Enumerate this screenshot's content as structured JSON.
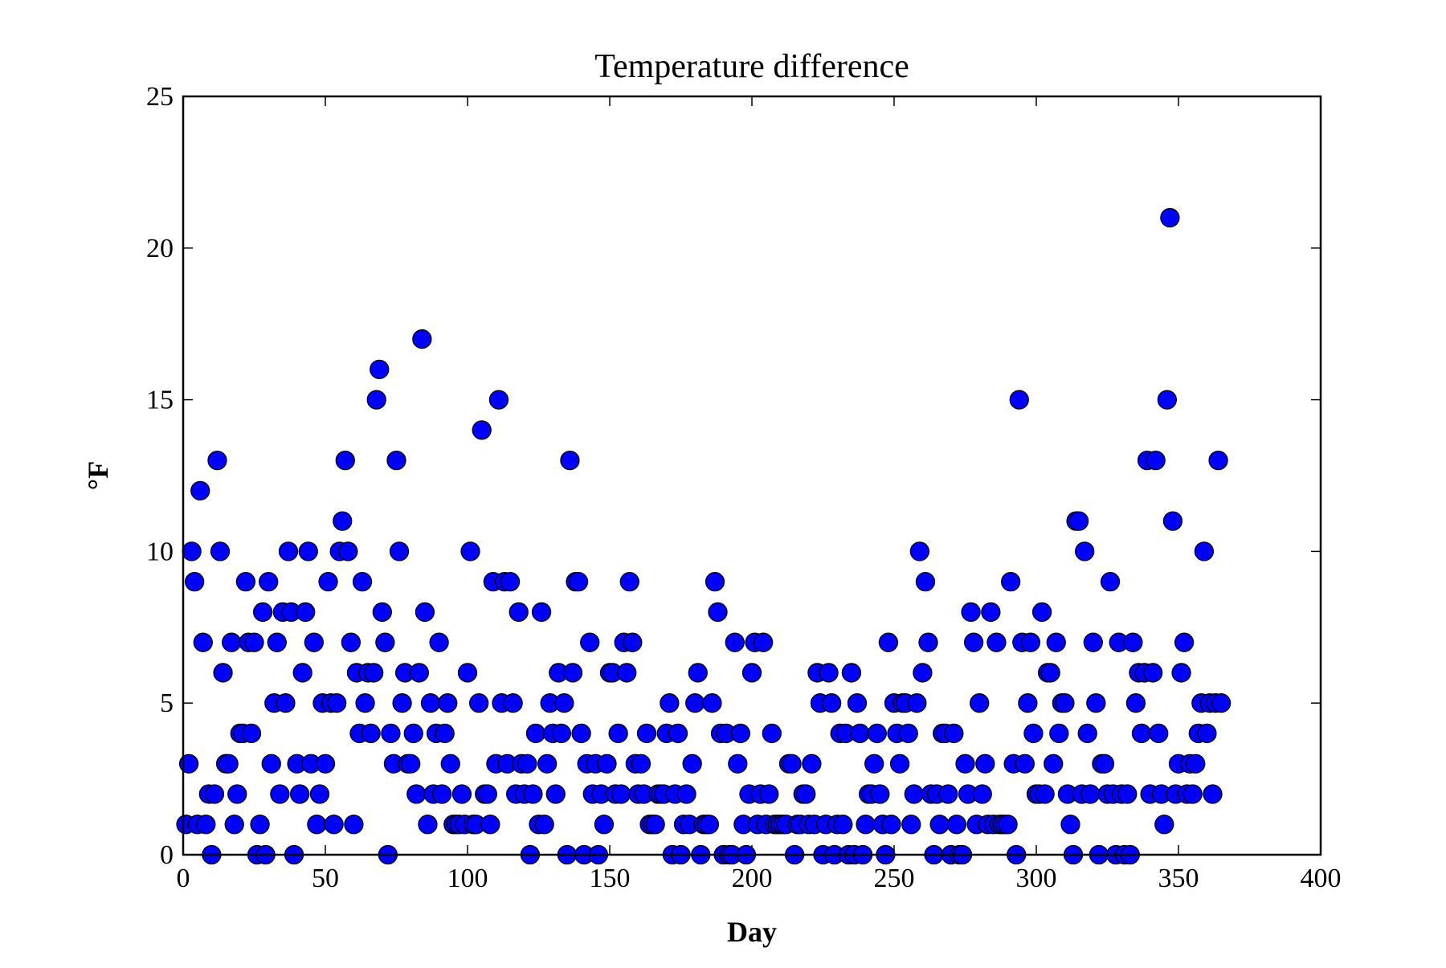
{
  "chart_data": {
    "type": "scatter",
    "title": "Temperature difference",
    "x_label": "Day",
    "y_label": "°F",
    "xlim": [
      0,
      400
    ],
    "xticks": [
      0,
      50,
      100,
      150,
      200,
      250,
      300,
      350,
      400
    ],
    "ylim": [
      0,
      25
    ],
    "yticks": [
      0,
      5,
      10,
      15,
      20,
      25
    ],
    "grid": false,
    "series": [
      {
        "name": "Temperature difference",
        "color": "#0000ff",
        "x": [
          1,
          2,
          3,
          4,
          5,
          6,
          7,
          8,
          9,
          10,
          11,
          12,
          13,
          14,
          15,
          16,
          17,
          18,
          19,
          20,
          21,
          22,
          23,
          24,
          25,
          26,
          27,
          28,
          29,
          30,
          31,
          32,
          33,
          34,
          35,
          36,
          37,
          38,
          39,
          40,
          41,
          42,
          43,
          44,
          45,
          46,
          47,
          48,
          49,
          50,
          51,
          52,
          53,
          54,
          55,
          56,
          57,
          58,
          59,
          60,
          61,
          62,
          63,
          64,
          65,
          66,
          67,
          68,
          69,
          70,
          71,
          72,
          73,
          74,
          75,
          76,
          77,
          78,
          79,
          80,
          81,
          82,
          83,
          84,
          85,
          86,
          87,
          88,
          89,
          90,
          91,
          92,
          93,
          94,
          95,
          96,
          97,
          98,
          99,
          100,
          101,
          102,
          103,
          104,
          105,
          106,
          107,
          108,
          109,
          110,
          111,
          112,
          113,
          114,
          115,
          116,
          117,
          118,
          119,
          120,
          121,
          122,
          123,
          124,
          125,
          126,
          127,
          128,
          129,
          130,
          131,
          132,
          133,
          134,
          135,
          136,
          137,
          138,
          139,
          140,
          141,
          142,
          143,
          144,
          145,
          146,
          147,
          148,
          149,
          150,
          151,
          152,
          153,
          154,
          155,
          156,
          157,
          158,
          159,
          160,
          161,
          162,
          163,
          164,
          165,
          166,
          167,
          168,
          169,
          170,
          171,
          172,
          173,
          174,
          175,
          176,
          177,
          178,
          179,
          180,
          181,
          182,
          183,
          184,
          185,
          186,
          187,
          188,
          189,
          190,
          191,
          192,
          193,
          194,
          195,
          196,
          197,
          198,
          199,
          200,
          201,
          202,
          203,
          204,
          205,
          206,
          207,
          208,
          209,
          210,
          211,
          212,
          213,
          214,
          215,
          216,
          217,
          218,
          219,
          220,
          221,
          222,
          223,
          224,
          225,
          226,
          227,
          228,
          229,
          230,
          231,
          232,
          233,
          234,
          235,
          236,
          237,
          238,
          239,
          240,
          241,
          242,
          243,
          244,
          245,
          246,
          247,
          248,
          249,
          250,
          251,
          252,
          253,
          254,
          255,
          256,
          257,
          258,
          259,
          260,
          261,
          262,
          263,
          264,
          265,
          266,
          267,
          268,
          269,
          270,
          271,
          272,
          273,
          274,
          275,
          276,
          277,
          278,
          279,
          280,
          281,
          282,
          283,
          284,
          285,
          286,
          287,
          288,
          289,
          290,
          291,
          292,
          293,
          294,
          295,
          296,
          297,
          298,
          299,
          300,
          301,
          302,
          303,
          304,
          305,
          306,
          307,
          308,
          309,
          310,
          311,
          312,
          313,
          314,
          315,
          316,
          317,
          318,
          319,
          320,
          321,
          322,
          323,
          324,
          325,
          326,
          327,
          328,
          329,
          330,
          331,
          332,
          333,
          334,
          335,
          336,
          337,
          338,
          339,
          340,
          341,
          342,
          343,
          344,
          345,
          346,
          347,
          348,
          349,
          350,
          351,
          352,
          353,
          354,
          355,
          356,
          357,
          358,
          359,
          360,
          361,
          362,
          363,
          364,
          365
        ],
        "values": [
          1,
          3,
          10,
          9,
          1,
          12,
          7,
          1,
          2,
          0,
          2,
          13,
          10,
          6,
          3,
          3,
          7,
          1,
          2,
          4,
          4,
          9,
          7,
          4,
          7,
          0,
          1,
          8,
          0,
          9,
          3,
          5,
          7,
          2,
          8,
          5,
          10,
          8,
          0,
          3,
          2,
          6,
          8,
          10,
          3,
          7,
          1,
          2,
          5,
          3,
          9,
          5,
          1,
          5,
          10,
          11,
          13,
          10,
          7,
          1,
          6,
          4,
          9,
          5,
          6,
          4,
          6,
          15,
          16,
          8,
          7,
          0,
          4,
          3,
          13,
          10,
          5,
          6,
          3,
          3,
          4,
          2,
          6,
          17,
          8,
          1,
          5,
          2,
          4,
          7,
          2,
          4,
          5,
          3,
          1,
          1,
          1,
          2,
          1,
          6,
          10,
          1,
          1,
          5,
          14,
          2,
          2,
          1,
          9,
          3,
          15,
          5,
          9,
          3,
          9,
          5,
          2,
          8,
          3,
          2,
          3,
          0,
          2,
          4,
          1,
          8,
          1,
          3,
          5,
          4,
          2,
          6,
          4,
          5,
          0,
          13,
          6,
          9,
          9,
          4,
          0,
          3,
          7,
          2,
          3,
          0,
          2,
          1,
          3,
          6,
          6,
          2,
          4,
          2,
          7,
          6,
          9,
          7,
          3,
          2,
          3,
          2,
          4,
          1,
          1,
          1,
          2,
          2,
          2,
          4,
          5,
          0,
          2,
          4,
          0,
          1,
          2,
          1,
          3,
          5,
          6,
          0,
          1,
          1,
          1,
          5,
          9,
          8,
          4,
          0,
          4,
          0,
          0,
          7,
          3,
          4,
          1,
          0,
          2,
          6,
          7,
          1,
          2,
          7,
          1,
          2,
          4,
          1,
          1,
          1,
          1,
          1,
          3,
          3,
          0,
          1,
          1,
          2,
          2,
          1,
          3,
          1,
          6,
          5,
          0,
          1,
          6,
          5,
          0,
          1,
          4,
          1,
          4,
          0,
          6,
          0,
          5,
          4,
          0,
          1,
          2,
          2,
          3,
          4,
          2,
          1,
          0,
          7,
          1,
          5,
          4,
          3,
          5,
          5,
          4,
          1,
          2,
          5,
          10,
          6,
          9,
          7,
          2,
          0,
          2,
          1,
          4,
          4,
          2,
          0,
          4,
          1,
          0,
          0,
          3,
          2,
          8,
          7,
          1,
          5,
          2,
          3,
          1,
          8,
          1,
          7,
          1,
          1,
          1,
          1,
          9,
          3,
          0,
          15,
          7,
          3,
          5,
          7,
          4,
          2,
          2,
          8,
          2,
          6,
          6,
          3,
          7,
          4,
          5,
          5,
          2,
          1,
          0,
          11,
          11,
          2,
          10,
          4,
          2,
          7,
          5,
          0,
          3,
          3,
          2,
          9,
          2,
          0,
          7,
          2,
          0,
          2,
          0,
          7,
          5,
          6,
          4,
          6,
          13,
          2,
          6,
          13,
          4,
          2,
          1,
          15,
          21,
          11,
          2,
          3,
          6,
          7,
          2,
          3,
          2,
          3,
          4,
          5,
          10,
          4,
          5,
          2,
          5,
          13,
          5
        ]
      }
    ]
  }
}
